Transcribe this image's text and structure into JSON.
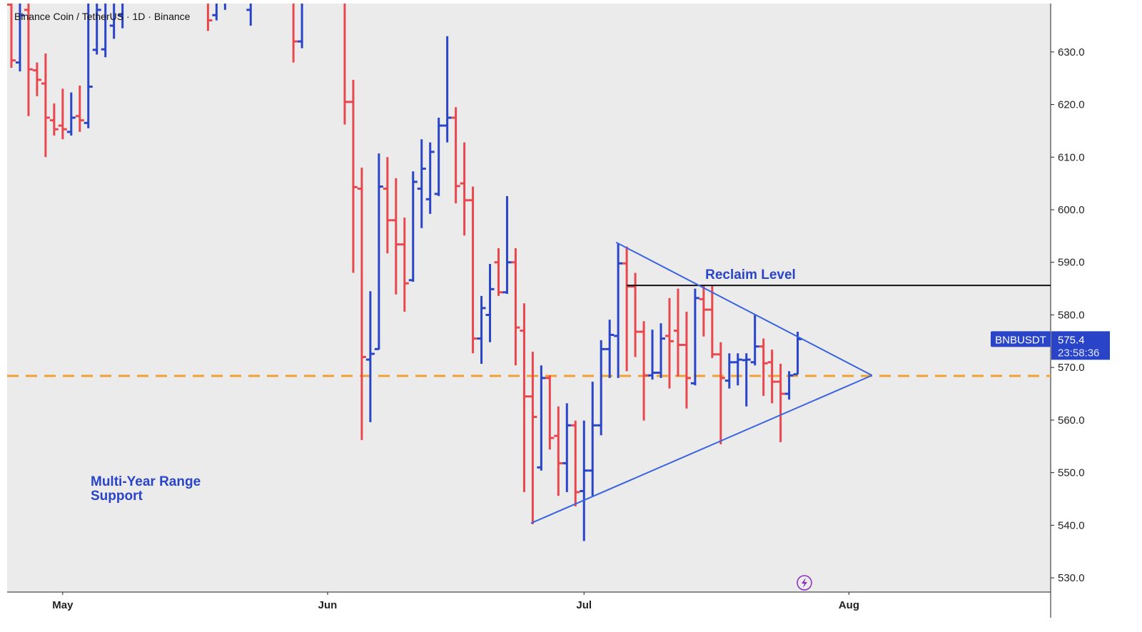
{
  "chart_data": {
    "type": "ohlc",
    "title": "Binance Coin / TetherUS · 1D · Binance",
    "up_color": "#2a44c8",
    "down_color": "#e8474e",
    "x": [
      -6,
      -5,
      -4,
      -3,
      -2,
      -1,
      0,
      1,
      2,
      3,
      4,
      5,
      6,
      7,
      17,
      18,
      19,
      22,
      27,
      28,
      33,
      34,
      35,
      36,
      37,
      38,
      39,
      40,
      41,
      42,
      43,
      44,
      45,
      46,
      47,
      48,
      49,
      50,
      51,
      52,
      53,
      54,
      55,
      56,
      57,
      58,
      59,
      60,
      61,
      62,
      63,
      64,
      65,
      66,
      67,
      68,
      69,
      70,
      71,
      72,
      73,
      74,
      75,
      76,
      77,
      78,
      79,
      80,
      81,
      82,
      83,
      84,
      85,
      86
    ],
    "open": [
      639,
      628,
      638,
      626.5,
      624,
      617,
      616,
      614.8,
      617.8,
      616.5,
      630.4,
      630.5,
      635,
      637,
      645,
      637,
      640,
      638,
      645,
      632,
      640,
      620.5,
      604,
      571.5,
      573.5,
      604,
      598,
      593.4,
      586.6,
      604,
      602,
      603,
      616,
      617.5,
      605,
      601.8,
      575.5,
      580,
      590,
      584.3,
      590,
      577,
      564.5,
      551,
      568,
      557,
      551.8,
      559,
      546.5,
      550.4,
      559,
      573.5,
      576,
      589.8,
      585.4,
      576.8,
      568.5,
      569,
      576,
      577,
      574.3,
      567,
      583,
      581,
      572.5,
      567.5,
      571,
      571.4,
      571,
      574,
      571,
      567.3,
      565,
      568.7
    ],
    "high": [
      644,
      645,
      646,
      628,
      629.7,
      620.2,
      623,
      622.3,
      623.6,
      645,
      645,
      646,
      648,
      650,
      652,
      650,
      652,
      652,
      650,
      648,
      655,
      624.7,
      608,
      584.5,
      610.7,
      610,
      606,
      598.5,
      607.3,
      613.4,
      612.8,
      617.5,
      633,
      619.5,
      612.8,
      604.4,
      583.6,
      589.7,
      592.7,
      602.6,
      592.7,
      582.2,
      573,
      570.4,
      568.5,
      562.6,
      563.2,
      559.9,
      559.9,
      567.3,
      575.2,
      579.1,
      593.5,
      593,
      588,
      578.8,
      577.2,
      578.4,
      583.2,
      585,
      580.6,
      585,
      585.6,
      585.6,
      574.8,
      572.7,
      572.7,
      572.7,
      580,
      575.5,
      573.4,
      570.7,
      569.3,
      576.8
    ],
    "low": [
      627,
      626.3,
      617.8,
      621.6,
      610,
      614.1,
      613.4,
      614.1,
      614.8,
      615.5,
      629.5,
      629,
      632.5,
      634.5,
      634,
      636,
      638,
      635,
      628,
      630.7,
      616.2,
      588,
      556.2,
      559.6,
      573.4,
      591.7,
      583.9,
      580.6,
      586.3,
      596.5,
      599.2,
      602.6,
      612.8,
      601.2,
      595.1,
      572.7,
      570.7,
      574.8,
      583.6,
      584,
      570.4,
      546.3,
      540.2,
      550.4,
      554.4,
      545.6,
      546.3,
      543.6,
      537,
      545.6,
      557.1,
      568,
      568,
      569.3,
      572,
      559.9,
      567.7,
      568,
      566,
      568.3,
      562.2,
      566.6,
      575.9,
      571.8,
      555.4,
      566,
      566.6,
      562.6,
      570.4,
      564.6,
      563.2,
      555.8,
      563.9,
      568.7
    ],
    "close": [
      628.4,
      637,
      626.7,
      624.7,
      617.5,
      615.3,
      615.3,
      617.5,
      617,
      623.4,
      638,
      640,
      644,
      646,
      636,
      645,
      648,
      648,
      632,
      640,
      620.5,
      604.3,
      572,
      572.6,
      604.4,
      598,
      593.4,
      586,
      605.3,
      607.8,
      611,
      616,
      617.5,
      604.5,
      601.8,
      575.5,
      581.3,
      584.9,
      584.3,
      590,
      577.6,
      564.5,
      560.6,
      568,
      556.6,
      551.8,
      559,
      546.3,
      550.4,
      559,
      573.5,
      576.2,
      589.8,
      585.4,
      576.8,
      568.5,
      569,
      575.5,
      575,
      574.3,
      568,
      583.2,
      581,
      572.5,
      568,
      571,
      571.5,
      571.5,
      574,
      570.8,
      567.3,
      565,
      568.5,
      575.4
    ],
    "xlim": [
      -6.5,
      115.6
    ],
    "xticks": [
      {
        "value": 0,
        "label": "May"
      },
      {
        "value": 31,
        "label": "Jun"
      },
      {
        "value": 61,
        "label": "Jul"
      },
      {
        "value": 92,
        "label": "Aug"
      }
    ],
    "ylim": [
      527.3,
      639.2
    ],
    "yticks": [
      {
        "value": 530,
        "label": "530.0"
      },
      {
        "value": 540,
        "label": "540.0"
      },
      {
        "value": 550,
        "label": "550.0"
      },
      {
        "value": 560,
        "label": "560.0"
      },
      {
        "value": 570,
        "label": "570.0"
      },
      {
        "value": 580,
        "label": "580.0"
      },
      {
        "value": 590,
        "label": "590.0"
      },
      {
        "value": 600,
        "label": "600.0"
      },
      {
        "value": 610,
        "label": "610.0"
      },
      {
        "value": 620,
        "label": "620.0"
      },
      {
        "value": 630,
        "label": "630.0"
      }
    ],
    "reclaim_level": {
      "label": "Reclaim Level",
      "value": 585.6,
      "from_x": 66,
      "color": "#111111"
    },
    "support_level": {
      "label": "Multi-Year Range Support",
      "value": 568.4,
      "color": "#f0a030"
    },
    "triangle": {
      "color": "#3a63e0",
      "upper": [
        [
          64.75,
          593.8
        ],
        [
          94.7,
          568.5
        ]
      ],
      "lower": [
        [
          54.8,
          540.4
        ],
        [
          94.7,
          568.5
        ]
      ]
    },
    "last": {
      "symbol": "BNBUSDT",
      "price": 575.4,
      "countdown": "23:58:36"
    }
  }
}
